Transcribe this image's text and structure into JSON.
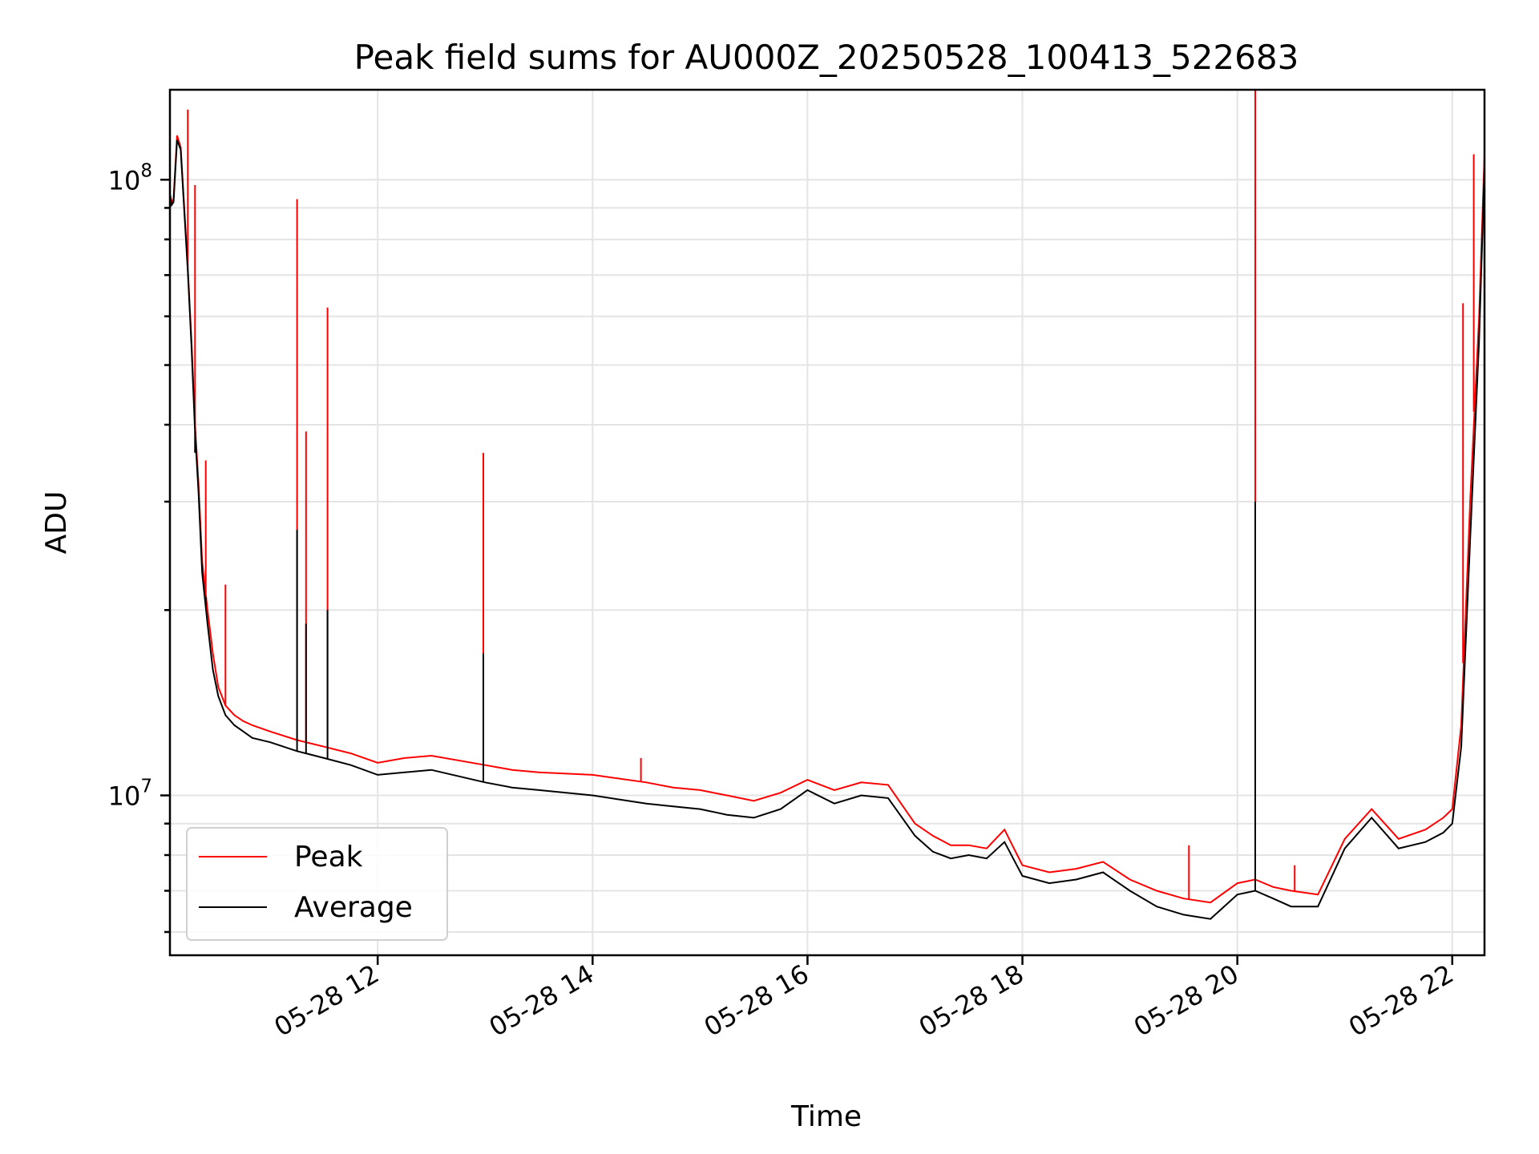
{
  "chart_data": {
    "type": "line",
    "title": "Peak field sums for AU000Z_20250528_100413_522683",
    "xlabel": "Time",
    "ylabel": "ADU",
    "yscale": "log",
    "xlim": [
      "05-28 10:04",
      "05-28 22:18"
    ],
    "ylim": [
      5500000,
      140000000
    ],
    "x_ticks": [
      "05-28 12",
      "05-28 14",
      "05-28 16",
      "05-28 18",
      "05-28 20",
      "05-28 22"
    ],
    "y_ticks": [
      {
        "base": "10",
        "exp": "7",
        "value": 10000000
      },
      {
        "base": "10",
        "exp": "8",
        "value": 100000000
      }
    ],
    "grid": true,
    "legend": {
      "position": "lower-left",
      "entries": [
        "Peak",
        "Average"
      ]
    },
    "colors": {
      "Peak": "#ff0000",
      "Average": "#000000"
    },
    "series": [
      {
        "name": "Peak",
        "color": "#ff0000",
        "x": [
          "05-28 10:04",
          "05-28 10:05",
          "05-28 10:06",
          "05-28 10:08",
          "05-28 10:10",
          "05-28 10:12",
          "05-28 10:14",
          "05-28 10:16",
          "05-28 10:18",
          "05-28 10:20",
          "05-28 10:22",
          "05-28 10:25",
          "05-28 10:28",
          "05-28 10:31",
          "05-28 10:35",
          "05-28 10:40",
          "05-28 10:45",
          "05-28 10:50",
          "05-28 11:00",
          "05-28 11:15",
          "05-28 11:30",
          "05-28 11:45",
          "05-28 12:00",
          "05-28 12:15",
          "05-28 12:30",
          "05-28 13:00",
          "05-28 13:15",
          "05-28 13:30",
          "05-28 14:00",
          "05-28 14:30",
          "05-28 14:45",
          "05-28 15:00",
          "05-28 15:15",
          "05-28 15:30",
          "05-28 15:45",
          "05-28 16:00",
          "05-28 16:15",
          "05-28 16:30",
          "05-28 16:45",
          "05-28 17:00",
          "05-28 17:10",
          "05-28 17:20",
          "05-28 17:30",
          "05-28 17:40",
          "05-28 17:50",
          "05-28 18:00",
          "05-28 18:15",
          "05-28 18:30",
          "05-28 18:45",
          "05-28 19:00",
          "05-28 19:15",
          "05-28 19:30",
          "05-28 19:45",
          "05-28 20:00",
          "05-28 20:10",
          "05-28 20:20",
          "05-28 20:30",
          "05-28 20:45",
          "05-28 21:00",
          "05-28 21:15",
          "05-28 21:30",
          "05-28 21:45",
          "05-28 21:55",
          "05-28 22:00",
          "05-28 22:05",
          "05-28 22:10",
          "05-28 22:15",
          "05-28 22:18"
        ],
        "y": [
          95000000,
          92000000,
          93000000,
          118000000,
          113000000,
          90000000,
          72000000,
          55000000,
          40000000,
          32000000,
          24000000,
          20000000,
          17000000,
          15000000,
          14000000,
          13500000,
          13200000,
          13000000,
          12700000,
          12300000,
          12000000,
          11700000,
          11300000,
          11500000,
          11600000,
          11200000,
          11000000,
          10900000,
          10800000,
          10500000,
          10300000,
          10200000,
          10000000,
          9800000,
          10100000,
          10600000,
          10200000,
          10500000,
          10400000,
          9000000,
          8600000,
          8300000,
          8300000,
          8200000,
          8800000,
          7700000,
          7500000,
          7600000,
          7800000,
          7300000,
          7000000,
          6800000,
          6700000,
          7200000,
          7300000,
          7100000,
          7000000,
          6900000,
          8500000,
          9500000,
          8500000,
          8800000,
          9200000,
          9500000,
          13000000,
          30000000,
          60000000,
          110000000
        ]
      },
      {
        "name": "Average",
        "color": "#000000",
        "x": [
          "05-28 10:04",
          "05-28 10:05",
          "05-28 10:06",
          "05-28 10:08",
          "05-28 10:10",
          "05-28 10:12",
          "05-28 10:14",
          "05-28 10:16",
          "05-28 10:18",
          "05-28 10:20",
          "05-28 10:22",
          "05-28 10:25",
          "05-28 10:28",
          "05-28 10:31",
          "05-28 10:35",
          "05-28 10:40",
          "05-28 10:45",
          "05-28 10:50",
          "05-28 11:00",
          "05-28 11:15",
          "05-28 11:30",
          "05-28 11:45",
          "05-28 12:00",
          "05-28 12:15",
          "05-28 12:30",
          "05-28 13:00",
          "05-28 13:15",
          "05-28 13:30",
          "05-28 14:00",
          "05-28 14:30",
          "05-28 14:45",
          "05-28 15:00",
          "05-28 15:15",
          "05-28 15:30",
          "05-28 15:45",
          "05-28 16:00",
          "05-28 16:15",
          "05-28 16:30",
          "05-28 16:45",
          "05-28 17:00",
          "05-28 17:10",
          "05-28 17:20",
          "05-28 17:30",
          "05-28 17:40",
          "05-28 17:50",
          "05-28 18:00",
          "05-28 18:15",
          "05-28 18:30",
          "05-28 18:45",
          "05-28 19:00",
          "05-28 19:15",
          "05-28 19:30",
          "05-28 19:45",
          "05-28 20:00",
          "05-28 20:10",
          "05-28 20:20",
          "05-28 20:30",
          "05-28 20:45",
          "05-28 21:00",
          "05-28 21:15",
          "05-28 21:30",
          "05-28 21:45",
          "05-28 21:55",
          "05-28 22:00",
          "05-28 22:05",
          "05-28 22:10",
          "05-28 22:15",
          "05-28 22:18"
        ],
        "y": [
          94000000,
          91000000,
          92000000,
          116000000,
          112000000,
          89000000,
          71000000,
          54000000,
          39000000,
          31000000,
          23000000,
          19000000,
          16000000,
          14500000,
          13500000,
          13000000,
          12700000,
          12400000,
          12200000,
          11800000,
          11500000,
          11200000,
          10800000,
          10900000,
          11000000,
          10500000,
          10300000,
          10200000,
          10000000,
          9700000,
          9600000,
          9500000,
          9300000,
          9200000,
          9500000,
          10200000,
          9700000,
          10000000,
          9900000,
          8600000,
          8100000,
          7900000,
          8000000,
          7900000,
          8400000,
          7400000,
          7200000,
          7300000,
          7500000,
          7000000,
          6600000,
          6400000,
          6300000,
          6900000,
          7000000,
          6800000,
          6600000,
          6600000,
          8200000,
          9200000,
          8200000,
          8400000,
          8700000,
          9000000,
          12000000,
          26000000,
          55000000,
          105000000
        ]
      }
    ],
    "spikes": [
      {
        "series": "Peak",
        "x": "05-28 10:14",
        "y": 130000000
      },
      {
        "series": "Peak",
        "x": "05-28 10:12",
        "y": 89000000
      },
      {
        "series": "Peak",
        "x": "05-28 10:18",
        "y": 98000000
      },
      {
        "series": "Peak",
        "x": "05-28 10:24",
        "y": 35000000
      },
      {
        "series": "Peak",
        "x": "05-28 10:35",
        "y": 22000000
      },
      {
        "series": "Peak",
        "x": "05-28 11:15",
        "y": 93000000
      },
      {
        "series": "Peak",
        "x": "05-28 11:20",
        "y": 39000000
      },
      {
        "series": "Peak",
        "x": "05-28 11:32",
        "y": 62000000
      },
      {
        "series": "Peak",
        "x": "05-28 12:59",
        "y": 36000000
      },
      {
        "series": "Peak",
        "x": "05-28 14:27",
        "y": 11500000
      },
      {
        "series": "Peak",
        "x": "05-28 19:33",
        "y": 8300000
      },
      {
        "series": "Peak",
        "x": "05-28 20:10",
        "y": 140000000
      },
      {
        "series": "Peak",
        "x": "05-28 20:32",
        "y": 7700000
      },
      {
        "series": "Peak",
        "x": "05-28 22:06",
        "y": 63000000
      },
      {
        "series": "Peak",
        "x": "05-28 22:12",
        "y": 110000000
      },
      {
        "series": "Average",
        "x": "05-28 10:18",
        "y": 36000000
      },
      {
        "series": "Average",
        "x": "05-28 10:24",
        "y": 21000000
      },
      {
        "series": "Average",
        "x": "05-28 11:15",
        "y": 27000000
      },
      {
        "series": "Average",
        "x": "05-28 11:20",
        "y": 19000000
      },
      {
        "series": "Average",
        "x": "05-28 11:32",
        "y": 20000000
      },
      {
        "series": "Average",
        "x": "05-28 12:59",
        "y": 17000000
      },
      {
        "series": "Average",
        "x": "05-28 20:10",
        "y": 30000000
      }
    ]
  }
}
